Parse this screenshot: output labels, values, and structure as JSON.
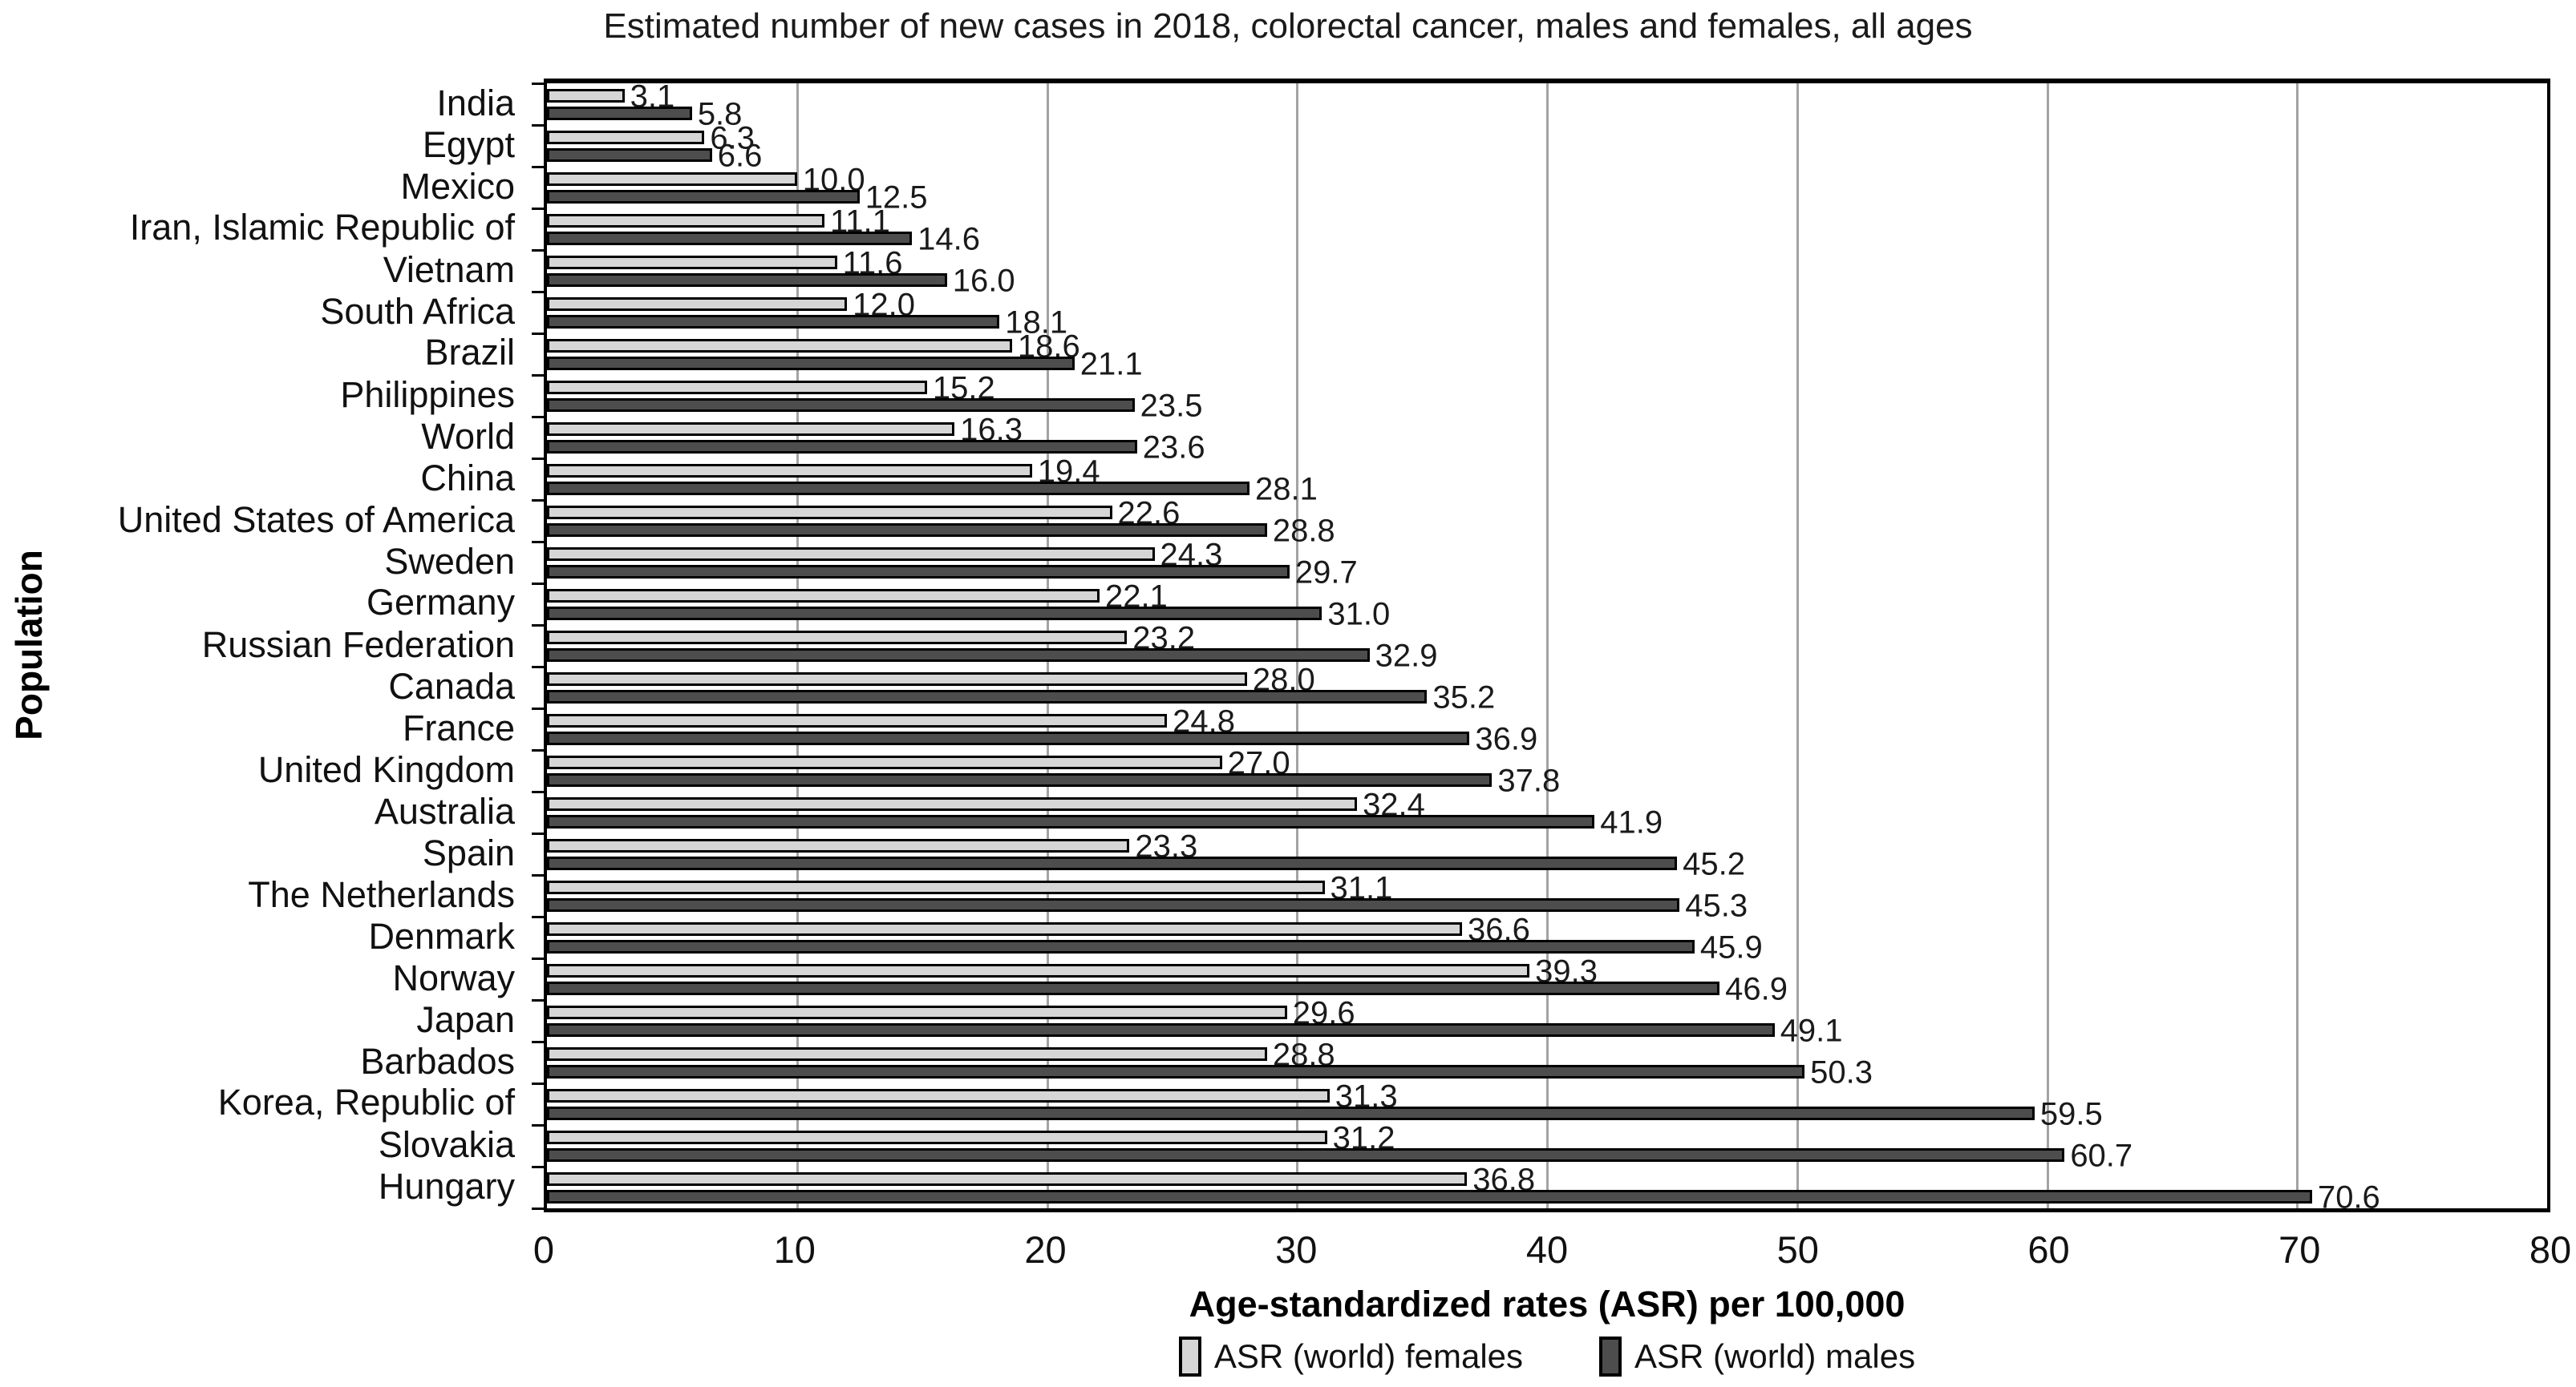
{
  "chart_data": {
    "type": "bar",
    "orientation": "horizontal",
    "title": "Estimated number of new cases in 2018, colorectal cancer, males and females, all ages",
    "xlabel": "Age-standardized rates (ASR) per 100,000",
    "ylabel": "Population",
    "xlim": [
      0,
      80
    ],
    "xticks": [
      0,
      10,
      20,
      30,
      40,
      50,
      60,
      70,
      80
    ],
    "grid": "vertical gridlines at each x tick",
    "legend_position": "bottom center",
    "value_label_format": "one decimal",
    "categories": [
      "India",
      "Egypt",
      "Mexico",
      "Iran, Islamic Republic of",
      "Vietnam",
      "South Africa",
      "Brazil",
      "Philippines",
      "World",
      "China",
      "United States of America",
      "Sweden",
      "Germany",
      "Russian Federation",
      "Canada",
      "France",
      "United Kingdom",
      "Australia",
      "Spain",
      "The Netherlands",
      "Denmark",
      "Norway",
      "Japan",
      "Barbados",
      "Korea, Republic of",
      "Slovakia",
      "Hungary"
    ],
    "series": [
      {
        "name": "ASR (world) females",
        "color": "#d6d6d6",
        "values": [
          3.1,
          6.3,
          10.0,
          11.1,
          11.6,
          12.0,
          18.6,
          15.2,
          16.3,
          19.4,
          22.6,
          24.3,
          22.1,
          23.2,
          28.0,
          24.8,
          27.0,
          32.4,
          23.3,
          31.1,
          36.6,
          39.3,
          29.6,
          28.8,
          31.3,
          31.2,
          36.8
        ]
      },
      {
        "name": "ASR (world) males",
        "color": "#4d4d4d",
        "values": [
          5.8,
          6.6,
          12.5,
          14.6,
          16.0,
          18.1,
          21.1,
          23.5,
          23.6,
          28.1,
          28.8,
          29.7,
          31.0,
          32.9,
          35.2,
          36.9,
          37.8,
          41.9,
          45.2,
          45.3,
          45.9,
          46.9,
          49.1,
          50.3,
          59.5,
          60.7,
          70.6
        ]
      }
    ],
    "colors": {
      "bar_border": "#000000",
      "gridline": "#a3a3a3",
      "frame": "#000000",
      "text": "#111111"
    }
  }
}
